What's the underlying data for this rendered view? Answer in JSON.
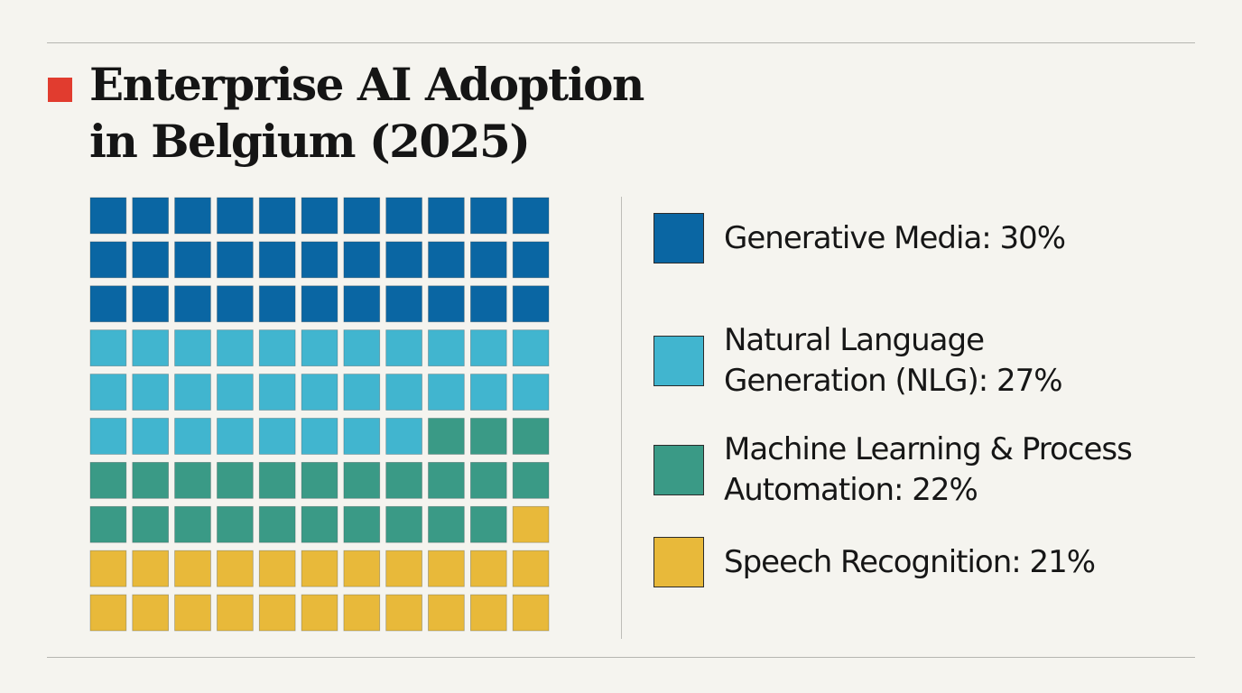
{
  "title": "Enterprise AI Adoption in Belgium (2025)",
  "chart_data": {
    "type": "waffle",
    "title": "Enterprise AI Adoption in Belgium (2025)",
    "unit": "%",
    "grid": {
      "rows": 10,
      "cols": 11
    },
    "series": [
      {
        "name": "Generative Media",
        "value": 30,
        "color": "#0a66a3",
        "label": "Generative Media: 30%"
      },
      {
        "name": "Natural Language Generation (NLG)",
        "value": 27,
        "color": "#41b5cf",
        "label": "Natural Language Generation (NLG): 27%"
      },
      {
        "name": "Machine Learning & Process Automation",
        "value": 22,
        "color": "#3a9a86",
        "label": "Machine Learning & Process Automation: 22%"
      },
      {
        "name": "Speech Recognition",
        "value": 21,
        "color": "#e8b93a",
        "label": "Speech Recognition: 21%"
      }
    ],
    "legend_position": "right"
  }
}
